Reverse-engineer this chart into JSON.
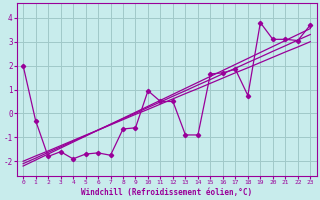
{
  "xlabel": "Windchill (Refroidissement éolien,°C)",
  "background_color": "#c8ecec",
  "grid_color": "#a0c8c8",
  "line_color": "#990099",
  "xlim": [
    -0.5,
    23.5
  ],
  "ylim": [
    -2.6,
    4.6
  ],
  "xticks": [
    0,
    1,
    2,
    3,
    4,
    5,
    6,
    7,
    8,
    9,
    10,
    11,
    12,
    13,
    14,
    15,
    16,
    17,
    18,
    19,
    20,
    21,
    22,
    23
  ],
  "yticks": [
    -2,
    -1,
    0,
    1,
    2,
    3,
    4
  ],
  "series": [
    [
      2.0,
      -0.3,
      -1.8,
      -1.6,
      -1.9,
      -1.7,
      -1.65,
      -1.75,
      -0.65,
      -0.6,
      0.95,
      0.5,
      0.5,
      -0.9,
      -0.9,
      1.65,
      1.7,
      1.85,
      0.75,
      3.8,
      3.1,
      3.1,
      3.05,
      3.7
    ],
    [
      -2.2,
      -1.95,
      -1.7,
      -1.45,
      -1.2,
      -0.95,
      -0.7,
      -0.45,
      -0.2,
      0.05,
      0.3,
      0.55,
      0.8,
      1.05,
      1.3,
      1.55,
      1.8,
      2.05,
      2.3,
      2.55,
      2.8,
      3.05,
      3.3,
      3.55
    ],
    [
      -2.1,
      -1.87,
      -1.63,
      -1.4,
      -1.16,
      -0.93,
      -0.69,
      -0.46,
      -0.22,
      0.01,
      0.25,
      0.48,
      0.72,
      0.95,
      1.19,
      1.42,
      1.66,
      1.89,
      2.13,
      2.36,
      2.6,
      2.83,
      3.07,
      3.3
    ],
    [
      -2.0,
      -1.78,
      -1.57,
      -1.35,
      -1.13,
      -0.91,
      -0.7,
      -0.48,
      -0.26,
      -0.04,
      0.17,
      0.39,
      0.61,
      0.83,
      1.04,
      1.26,
      1.48,
      1.7,
      1.91,
      2.13,
      2.35,
      2.57,
      2.78,
      3.0
    ]
  ]
}
